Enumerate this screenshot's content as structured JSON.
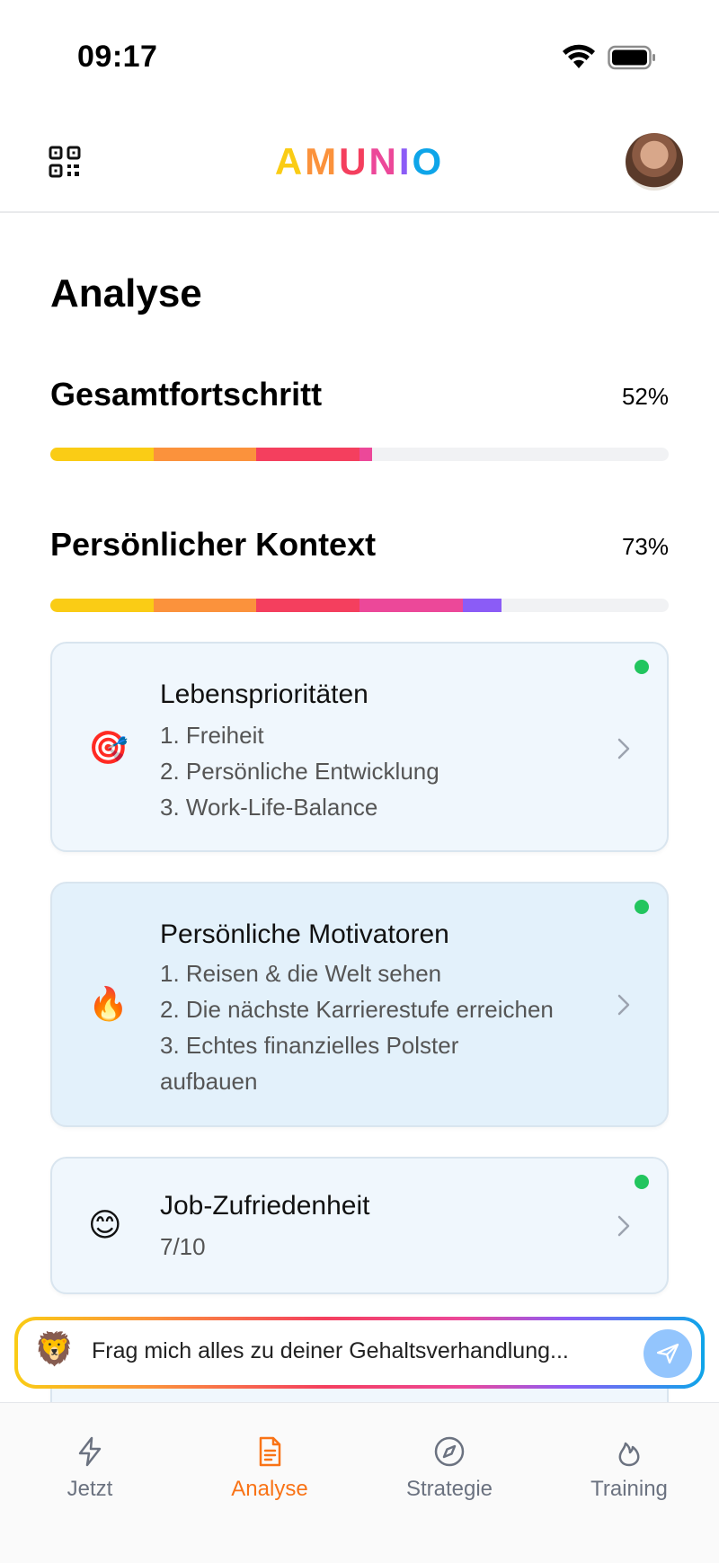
{
  "status_bar": {
    "time": "09:17"
  },
  "header": {
    "logo_letters": [
      {
        "char": "A",
        "color": "#facc15"
      },
      {
        "char": "M",
        "color": "#fb923c"
      },
      {
        "char": "U",
        "color": "#f43f5e"
      },
      {
        "char": "N",
        "color": "#ec4899"
      },
      {
        "char": "I",
        "color": "#8b5cf6"
      },
      {
        "char": "O",
        "color": "#0ea5e9"
      }
    ],
    "qr_icon": "qr-code-icon",
    "avatar_icon": "user-avatar"
  },
  "page": {
    "title": "Analyse"
  },
  "overall": {
    "title": "Gesamtfortschritt",
    "percent_label": "52%",
    "progress": 0.52,
    "segment_colors": [
      "#facc15",
      "#fb923c",
      "#f43f5e",
      "#ec4899"
    ]
  },
  "personal": {
    "title": "Persönlicher Kontext",
    "percent_label": "73%",
    "progress": 0.73,
    "segment_colors": [
      "#facc15",
      "#fb923c",
      "#f43f5e",
      "#ec4899",
      "#8b5cf6"
    ]
  },
  "cards": [
    {
      "emoji": "🎯",
      "title": "Lebensprioritäten",
      "lines": [
        "1. Freiheit",
        "2. Persönliche Entwicklung",
        "3. Work-Life-Balance"
      ],
      "status": "complete",
      "background": "#f0f7fd"
    },
    {
      "emoji": "🔥",
      "title": "Persönliche Motivatoren",
      "lines": [
        "1. Reisen & die Welt sehen",
        "2. Die nächste Karrierestufe erreichen",
        "3. Echtes finanzielles Polster",
        "aufbauen"
      ],
      "status": "complete",
      "background": "#e3f1fb"
    },
    {
      "emoji": "😊",
      "title": "Job-Zufriedenheit",
      "lines": [
        "7/10"
      ],
      "status": "complete",
      "background": "#f0f7fd"
    }
  ],
  "chat": {
    "icon": "🦁",
    "placeholder": "Frag mich alles zu deiner Gehaltsverhandlung..."
  },
  "tabs": [
    {
      "label": "Jetzt",
      "icon": "lightning-icon",
      "active": false
    },
    {
      "label": "Analyse",
      "icon": "document-icon",
      "active": true
    },
    {
      "label": "Strategie",
      "icon": "compass-icon",
      "active": false
    },
    {
      "label": "Training",
      "icon": "flame-icon",
      "active": false
    }
  ],
  "colors": {
    "accent": "#f97316",
    "success": "#22c55e"
  }
}
